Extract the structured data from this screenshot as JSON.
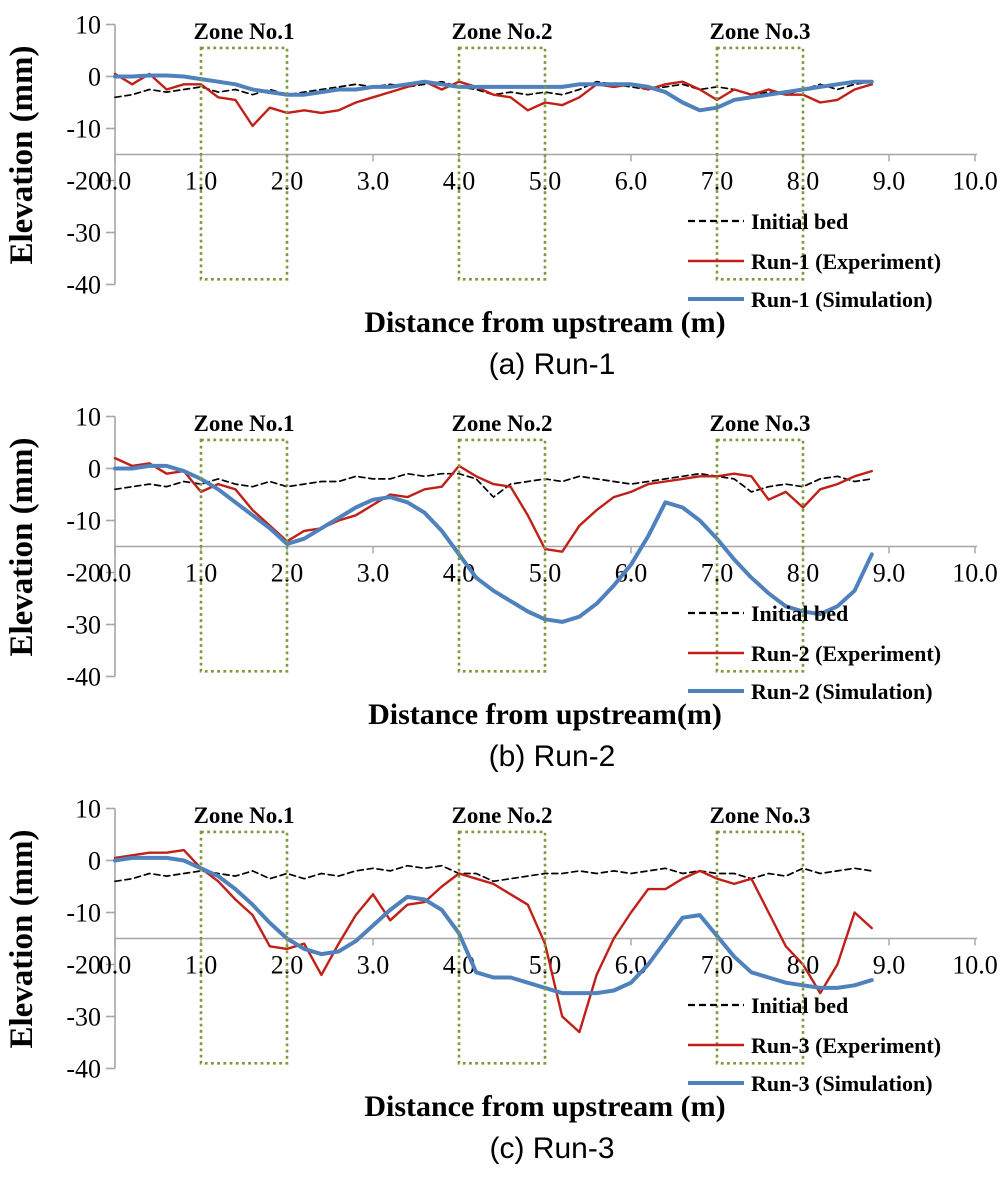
{
  "colors": {
    "initial_bed": "#000000",
    "experiment": "#C02018",
    "simulation": "#4F81BD",
    "zone_box": "#7E9B3C",
    "axis": "#A6A6A6",
    "background": "#FFFFFF"
  },
  "chart_data": [
    {
      "type": "line",
      "title": "(a) Run-1",
      "xlabel": "Distance from upstream (m)",
      "ylabel": "Elevation (mm)",
      "xlim": [
        0,
        10
      ],
      "ylim": [
        -40,
        10
      ],
      "x_ticks": [
        "0.0",
        "1.0",
        "2.0",
        "3.0",
        "4.0",
        "5.0",
        "6.0",
        "7.0",
        "8.0",
        "9.0",
        "10.0"
      ],
      "y_ticks": [
        10,
        0,
        -10,
        -20,
        -30,
        -40
      ],
      "baseline_elevation": -15,
      "grid": false,
      "legend_position": "lower right",
      "x_start": 0,
      "x_step": 0.2,
      "zones": [
        {
          "label": "Zone No.1",
          "x_range": [
            1.0,
            2.0
          ]
        },
        {
          "label": "Zone No.2",
          "x_range": [
            4.0,
            5.0
          ]
        },
        {
          "label": "Zone No.3",
          "x_range": [
            7.0,
            8.0
          ]
        }
      ],
      "series": [
        {
          "name": "Initial bed",
          "color": "#000000",
          "style": "dashed",
          "width": 1.7,
          "values": [
            -4,
            -3.5,
            -2.5,
            -3,
            -2.5,
            -2,
            -3,
            -2.5,
            -3.5,
            -2.5,
            -3.5,
            -3,
            -2.5,
            -2,
            -1.5,
            -2,
            -1.5,
            -2,
            -1.5,
            -1,
            -2,
            -2.5,
            -3.5,
            -3,
            -3.5,
            -3,
            -3.5,
            -2.5,
            -1,
            -1.5,
            -2,
            -2.5,
            -2,
            -1.5,
            -2.5,
            -2,
            -2.5,
            -3.5,
            -3,
            -3.5,
            -2.5,
            -1.5,
            -2.5,
            -1.5,
            -1
          ]
        },
        {
          "name": "Run-1 (Experiment)",
          "color": "#C02018",
          "style": "solid",
          "width": 2.4,
          "values": [
            0.5,
            -1.5,
            0.5,
            -2.5,
            -1.5,
            -1.5,
            -4,
            -4.5,
            -9.5,
            -6,
            -7,
            -6.5,
            -7,
            -6.5,
            -5,
            -4,
            -3,
            -2,
            -1,
            -2.5,
            -1,
            -2,
            -3.5,
            -4,
            -6.5,
            -5,
            -5.5,
            -4,
            -1.5,
            -2,
            -1.5,
            -2.5,
            -1.5,
            -1,
            -2.5,
            -4.5,
            -2.5,
            -3.5,
            -2.5,
            -3.5,
            -3.5,
            -5,
            -4.5,
            -2.5,
            -1.5
          ]
        },
        {
          "name": "Run-1 (Simulation)",
          "color": "#4F81BD",
          "style": "solid",
          "width": 4,
          "values": [
            0,
            0,
            0.2,
            0.2,
            0,
            -0.5,
            -1,
            -1.5,
            -2.5,
            -3,
            -3.5,
            -3.5,
            -3,
            -2.5,
            -2.5,
            -2,
            -2,
            -1.5,
            -1,
            -1.5,
            -2,
            -2,
            -2,
            -2,
            -2,
            -2,
            -2,
            -1.5,
            -1.5,
            -1.5,
            -1.5,
            -2,
            -3,
            -5,
            -6.5,
            -6,
            -4.5,
            -4,
            -3.5,
            -3,
            -2.5,
            -2,
            -1.5,
            -1,
            -1
          ]
        }
      ]
    },
    {
      "type": "line",
      "title": "(b) Run-2",
      "xlabel": "Distance from upstream(m)",
      "ylabel": "Elevation (mm)",
      "xlim": [
        0,
        10
      ],
      "ylim": [
        -40,
        10
      ],
      "x_ticks": [
        "0.0",
        "1.0",
        "2.0",
        "3.0",
        "4.0",
        "5.0",
        "6.0",
        "7.0",
        "8.0",
        "9.0",
        "10.0"
      ],
      "y_ticks": [
        10,
        0,
        -10,
        -20,
        -30,
        -40
      ],
      "baseline_elevation": -15,
      "grid": false,
      "legend_position": "lower right",
      "x_start": 0,
      "x_step": 0.2,
      "zones": [
        {
          "label": "Zone No.1",
          "x_range": [
            1.0,
            2.0
          ]
        },
        {
          "label": "Zone No.2",
          "x_range": [
            4.0,
            5.0
          ]
        },
        {
          "label": "Zone No.3",
          "x_range": [
            7.0,
            8.0
          ]
        }
      ],
      "series": [
        {
          "name": "Initial bed",
          "color": "#000000",
          "style": "dashed",
          "width": 1.7,
          "values": [
            -4,
            -3.5,
            -3,
            -3.5,
            -2.5,
            -3,
            -2,
            -3,
            -3.5,
            -2.5,
            -3.5,
            -3,
            -2.5,
            -2.5,
            -1.5,
            -2,
            -2,
            -1,
            -1.5,
            -1,
            -1,
            -2,
            -5.5,
            -3,
            -2.5,
            -2,
            -2.5,
            -1.5,
            -2,
            -2.5,
            -3,
            -2.5,
            -2,
            -1.5,
            -1,
            -1.5,
            -2,
            -4.5,
            -3.5,
            -3,
            -3.5,
            -2,
            -1.5,
            -2.5,
            -2
          ]
        },
        {
          "name": "Run-2 (Experiment)",
          "color": "#C02018",
          "style": "solid",
          "width": 2.4,
          "values": [
            2,
            0.5,
            1,
            -1,
            -0.5,
            -4.5,
            -3,
            -4,
            -8,
            -11,
            -14,
            -12,
            -11.5,
            -10,
            -9,
            -7,
            -5,
            -5.5,
            -4,
            -3.5,
            0.5,
            -1.5,
            -3,
            -3.5,
            -9,
            -15.5,
            -16,
            -11,
            -8,
            -5.5,
            -4.5,
            -3,
            -2.5,
            -2,
            -1.5,
            -1.5,
            -1,
            -1.5,
            -6,
            -4.5,
            -7.5,
            -4,
            -3,
            -1.5,
            -0.5
          ]
        },
        {
          "name": "Run-2 (Simulation)",
          "color": "#4F81BD",
          "style": "solid",
          "width": 4,
          "values": [
            0,
            0,
            0.5,
            0.5,
            -0.5,
            -2,
            -4,
            -6.5,
            -9,
            -11.5,
            -14.5,
            -13.5,
            -11.5,
            -9.5,
            -7.5,
            -6,
            -5.5,
            -6.5,
            -8.5,
            -12,
            -16.5,
            -21,
            -23.5,
            -25.5,
            -27.5,
            -29,
            -29.5,
            -28.5,
            -26,
            -22.5,
            -18.5,
            -13,
            -6.5,
            -7.5,
            -10,
            -13.5,
            -17.5,
            -21,
            -24,
            -26.5,
            -27.5,
            -28,
            -26.5,
            -23.5,
            -16.5
          ]
        }
      ]
    },
    {
      "type": "line",
      "title": "(c) Run-3",
      "xlabel": "Distance from upstream (m)",
      "ylabel": "Elevation (mm)",
      "xlim": [
        0,
        10
      ],
      "ylim": [
        -40,
        10
      ],
      "x_ticks": [
        "0.0",
        "1.0",
        "2.0",
        "3.0",
        "4.0",
        "5.0",
        "6.0",
        "7.0",
        "8.0",
        "9.0",
        "10.0"
      ],
      "y_ticks": [
        10,
        0,
        -10,
        -20,
        -30,
        -40
      ],
      "baseline_elevation": -15,
      "grid": false,
      "legend_position": "lower right",
      "x_start": 0,
      "x_step": 0.2,
      "zones": [
        {
          "label": "Zone No.1",
          "x_range": [
            1.0,
            2.0
          ]
        },
        {
          "label": "Zone No.2",
          "x_range": [
            4.0,
            5.0
          ]
        },
        {
          "label": "Zone No.3",
          "x_range": [
            7.0,
            8.0
          ]
        }
      ],
      "series": [
        {
          "name": "Initial bed",
          "color": "#000000",
          "style": "dashed",
          "width": 1.7,
          "values": [
            -4,
            -3.5,
            -2.5,
            -3,
            -2.5,
            -2,
            -2.5,
            -3,
            -2,
            -3.5,
            -2.5,
            -3.5,
            -2.5,
            -3,
            -2,
            -1.5,
            -2,
            -1,
            -1.5,
            -1,
            -2.5,
            -2.5,
            -4,
            -3.5,
            -3,
            -2.5,
            -2.5,
            -2,
            -2.5,
            -2,
            -2.5,
            -2,
            -1.5,
            -2.5,
            -2,
            -2.5,
            -2.5,
            -3.5,
            -2.5,
            -3,
            -1.5,
            -2.5,
            -2,
            -1.5,
            -2
          ]
        },
        {
          "name": "Run-3 (Experiment)",
          "color": "#C02018",
          "style": "solid",
          "width": 2.4,
          "values": [
            0.5,
            1,
            1.5,
            1.5,
            2,
            -1.5,
            -4,
            -7.5,
            -10.5,
            -16.5,
            -17,
            -16,
            -22,
            -16,
            -10.5,
            -6.5,
            -11.5,
            -8.5,
            -8,
            -5,
            -2.5,
            -3.5,
            -4.5,
            -6.5,
            -8.5,
            -16,
            -30,
            -33,
            -22,
            -15,
            -10,
            -5.5,
            -5.5,
            -3.5,
            -2,
            -3.5,
            -4.5,
            -3.5,
            -10,
            -16.5,
            -20,
            -25.5,
            -20,
            -10,
            -13
          ]
        },
        {
          "name": "Run-3 (Simulation)",
          "color": "#4F81BD",
          "style": "solid",
          "width": 4,
          "values": [
            0,
            0.5,
            0.5,
            0.5,
            0,
            -1.5,
            -3,
            -5.5,
            -8.5,
            -12,
            -15,
            -17,
            -18,
            -17.5,
            -15.5,
            -12.5,
            -9.5,
            -7,
            -7.5,
            -9.5,
            -14,
            -21.5,
            -22.5,
            -22.5,
            -23.5,
            -24.5,
            -25.5,
            -25.5,
            -25.5,
            -25,
            -23.5,
            -20,
            -15.5,
            -11,
            -10.5,
            -14.5,
            -18.5,
            -21.5,
            -22.5,
            -23.5,
            -24,
            -24.5,
            -24.5,
            -24,
            -23
          ]
        }
      ]
    }
  ]
}
